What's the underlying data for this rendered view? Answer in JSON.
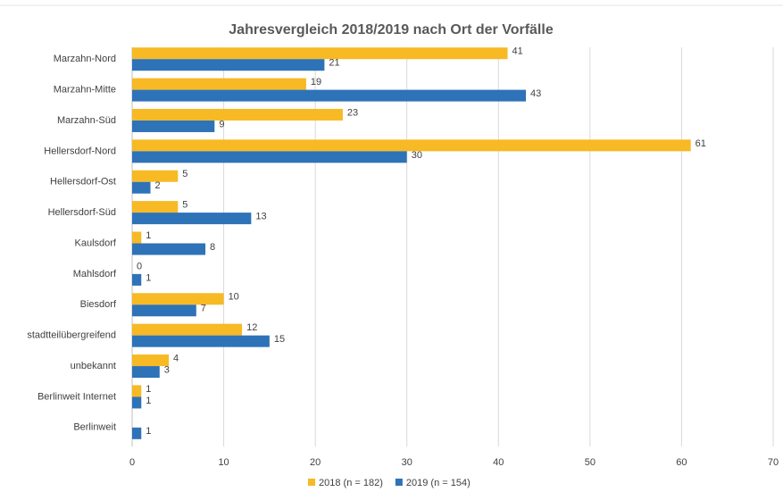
{
  "chart_data": {
    "type": "hbar",
    "title": "Jahresvergleich 2018/2019  nach Ort der Vorfälle",
    "categories": [
      "Marzahn-Nord",
      "Marzahn-Mitte",
      "Marzahn-Süd",
      "Hellersdorf-Nord",
      "Hellersdorf-Ost",
      "Hellersdorf-Süd",
      "Kaulsdorf",
      "Mahlsdorf",
      "Biesdorf",
      "stadtteilübergreifend",
      "unbekannt",
      "Berlinweit Internet",
      "Berlinweit"
    ],
    "series": [
      {
        "name": "2018 (n = 182)",
        "color": "#f7b924",
        "values": [
          41,
          19,
          23,
          61,
          5,
          5,
          1,
          0,
          10,
          12,
          4,
          1,
          null
        ]
      },
      {
        "name": "2019 (n = 154)",
        "color": "#2e72b8",
        "values": [
          21,
          43,
          9,
          30,
          2,
          13,
          8,
          1,
          7,
          15,
          3,
          1,
          1
        ]
      }
    ],
    "xlim": [
      0,
      70
    ],
    "xticks": [
      0,
      10,
      20,
      30,
      40,
      50,
      60,
      70
    ],
    "grid": true,
    "legend": "bottom"
  }
}
